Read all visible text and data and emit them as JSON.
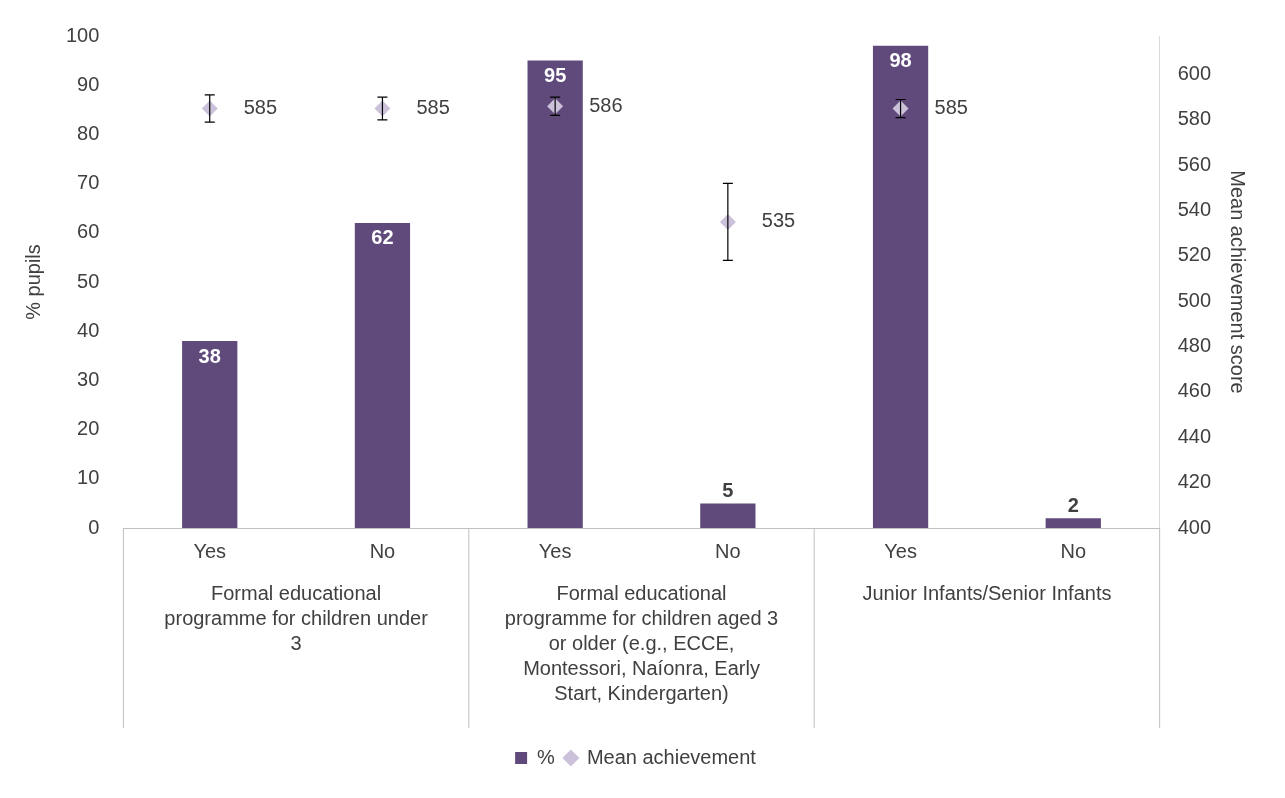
{
  "chart_data": {
    "type": "bar",
    "categories": [
      "Yes",
      "No",
      "Yes",
      "No",
      "Yes",
      "No"
    ],
    "ylabel": "% pupils",
    "y2label": "Mean achievement score",
    "ylim": [
      0,
      100
    ],
    "yticks": [
      0,
      10,
      20,
      30,
      40,
      50,
      60,
      70,
      80,
      90,
      100
    ],
    "y2lim": [
      400,
      617
    ],
    "y2ticks": [
      400,
      420,
      440,
      460,
      480,
      500,
      520,
      540,
      560,
      580,
      600
    ],
    "series": [
      {
        "name": "%",
        "color": "#604a7b",
        "values": [
          38,
          62,
          95,
          5,
          98,
          2
        ]
      },
      {
        "name": "Mean achievement",
        "type": "scatter",
        "axis": "y2",
        "color": "#ccc1da",
        "marker": "diamond",
        "values": [
          585,
          585,
          586,
          535,
          585,
          null
        ],
        "errors": [
          6,
          5,
          4,
          17,
          4,
          null
        ]
      }
    ],
    "annotations": [
      "Formal educational programme for children under 3",
      "Formal educational programme for children aged 3 or older (e.g., ECCE, Montessori, Naíonra, Early Start, Kindergarten)",
      "Junior Infants/Senior Infants"
    ],
    "data_labels": true,
    "grid": false,
    "legend": "bottom"
  }
}
